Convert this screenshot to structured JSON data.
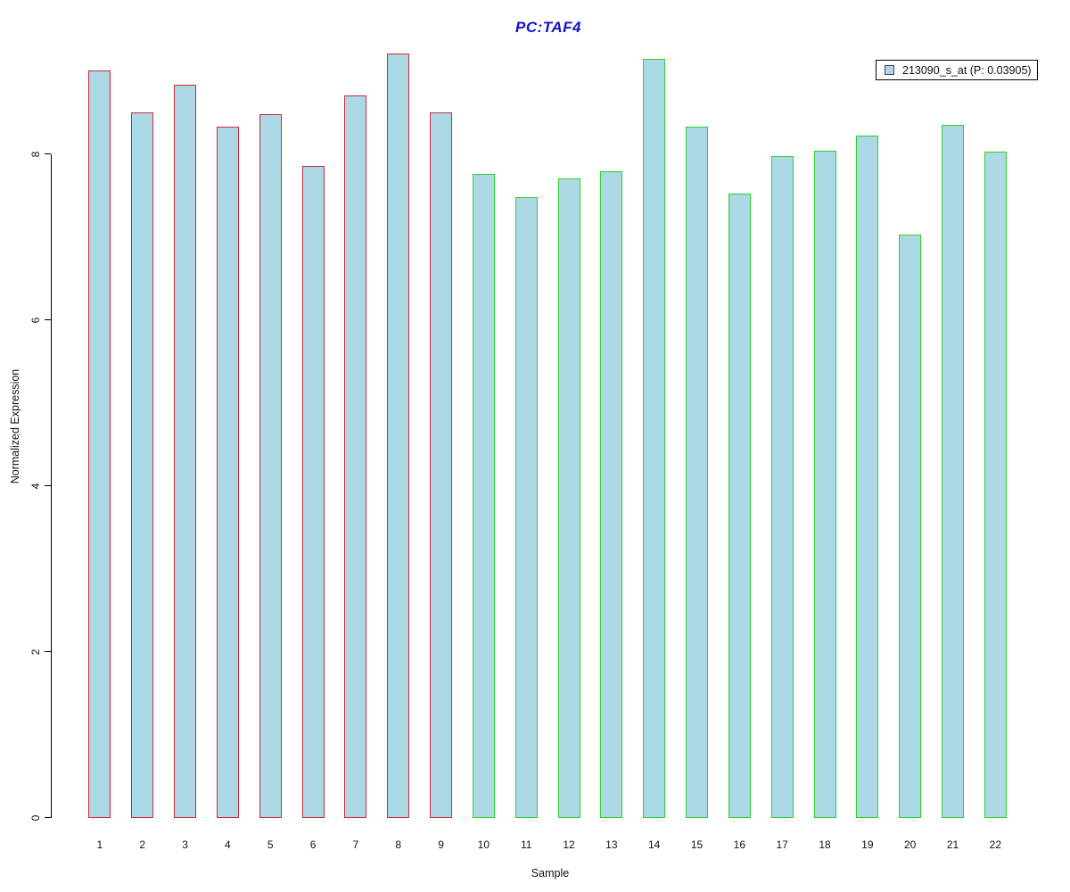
{
  "title": {
    "text": "PC:TAF4",
    "color": "#1212CC"
  },
  "legend": {
    "label": "213090_s_at (P: 0.03905)",
    "swatch_fill": "#ADD8E6",
    "swatch_border": "#444444"
  },
  "axes": {
    "ylabel": "Normalized Expression",
    "xlabel": "Sample",
    "axis_color": "#000000"
  },
  "chart_data": {
    "type": "bar",
    "title": "PC:TAF4",
    "xlabel": "Sample",
    "ylabel": "Normalized Expression",
    "series_name": "213090_s_at (P: 0.03905)",
    "p_value": "0.03905",
    "probe_id": "213090_s_at",
    "categories": [
      "1",
      "2",
      "3",
      "4",
      "5",
      "6",
      "7",
      "8",
      "9",
      "10",
      "11",
      "12",
      "13",
      "14",
      "15",
      "16",
      "17",
      "18",
      "19",
      "20",
      "21",
      "22"
    ],
    "values": [
      9.01,
      8.51,
      8.84,
      8.33,
      8.48,
      7.86,
      8.71,
      9.22,
      8.51,
      7.76,
      7.48,
      7.71,
      7.79,
      9.15,
      8.33,
      7.53,
      7.98,
      8.04,
      8.22,
      7.03,
      8.35,
      8.03
    ],
    "yticks": [
      0,
      2,
      4,
      6,
      8
    ],
    "ylim": [
      0,
      8
    ],
    "grid": false,
    "legend_position": "top-right",
    "bar_fill": "#ADD8E6",
    "groups": [
      {
        "name": "group-1",
        "start_index": 0,
        "end_index": 8,
        "border_color": "#CC2936"
      },
      {
        "name": "group-2",
        "start_index": 9,
        "end_index": 21,
        "border_color": "#2BD22B"
      }
    ]
  }
}
